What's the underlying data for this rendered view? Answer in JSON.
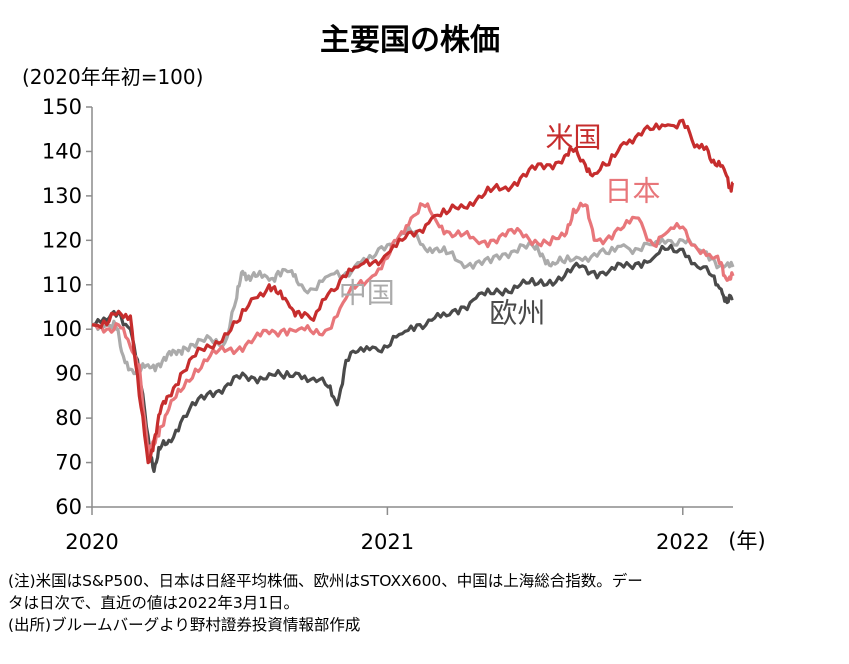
{
  "chart_data": {
    "type": "line",
    "title": "主要国の株価",
    "ylabel": "(2020年年初=100)",
    "xlabel": "(年)",
    "ylim": [
      60,
      150
    ],
    "yticks": [
      60,
      70,
      80,
      90,
      100,
      110,
      120,
      130,
      140,
      150
    ],
    "xlim": [
      2020.0,
      2022.17
    ],
    "xticks": [
      {
        "value": 2020,
        "label": "2020"
      },
      {
        "value": 2021,
        "label": "2021"
      },
      {
        "value": 2022,
        "label": "2022"
      }
    ],
    "series": [
      {
        "name": "中国",
        "label": "中国",
        "color": "#ababab",
        "x": [
          2020.0,
          2020.05,
          2020.08,
          2020.1,
          2020.13,
          2020.16,
          2020.19,
          2020.22,
          2020.25,
          2020.28,
          2020.31,
          2020.35,
          2020.4,
          2020.45,
          2020.49,
          2020.51,
          2020.53,
          2020.56,
          2020.6,
          2020.63,
          2020.67,
          2020.7,
          2020.75,
          2020.8,
          2020.85,
          2020.9,
          2020.95,
          2021.0,
          2021.04,
          2021.08,
          2021.12,
          2021.16,
          2021.2,
          2021.25,
          2021.3,
          2021.35,
          2021.4,
          2021.45,
          2021.5,
          2021.53,
          2021.56,
          2021.6,
          2021.65,
          2021.7,
          2021.75,
          2021.8,
          2021.85,
          2021.9,
          2021.95,
          2022.0,
          2022.05,
          2022.1,
          2022.14,
          2022.17
        ],
        "values": [
          101,
          101,
          101,
          95,
          91,
          90,
          92,
          92,
          93,
          95,
          96,
          96,
          98,
          97,
          107,
          113,
          112,
          112,
          111,
          113,
          113,
          110,
          109,
          112,
          112,
          115,
          116,
          119,
          121,
          122,
          119,
          118,
          117,
          115,
          115,
          115,
          117,
          119,
          118,
          116,
          115,
          115,
          116,
          117,
          117,
          119,
          118,
          119,
          120,
          120,
          118,
          116,
          114,
          114
        ]
      },
      {
        "name": "欧州",
        "label": "欧州",
        "color": "#4a4a4a",
        "x": [
          2020.0,
          2020.05,
          2020.09,
          2020.13,
          2020.16,
          2020.19,
          2020.21,
          2020.23,
          2020.26,
          2020.3,
          2020.35,
          2020.4,
          2020.45,
          2020.5,
          2020.55,
          2020.6,
          2020.65,
          2020.7,
          2020.75,
          2020.8,
          2020.83,
          2020.86,
          2020.9,
          2020.95,
          2021.0,
          2021.05,
          2021.1,
          2021.15,
          2021.2,
          2021.25,
          2021.3,
          2021.35,
          2021.4,
          2021.45,
          2021.5,
          2021.55,
          2021.6,
          2021.65,
          2021.7,
          2021.75,
          2021.8,
          2021.85,
          2021.9,
          2021.95,
          2022.0,
          2022.05,
          2022.1,
          2022.13,
          2022.15,
          2022.17
        ],
        "values": [
          101,
          102,
          104,
          100,
          90,
          76,
          68,
          73,
          75,
          79,
          83,
          86,
          87,
          89,
          89,
          90,
          89,
          90,
          89,
          87,
          83,
          93,
          95,
          96,
          96,
          99,
          101,
          102,
          103,
          105,
          107,
          108,
          109,
          110,
          110,
          111,
          112,
          114,
          113,
          113,
          114,
          115,
          116,
          118,
          118,
          114,
          112,
          109,
          106,
          107
        ]
      },
      {
        "name": "日本",
        "label": "日本",
        "color": "#e8767a",
        "x": [
          2020.0,
          2020.05,
          2020.09,
          2020.13,
          2020.16,
          2020.19,
          2020.21,
          2020.23,
          2020.26,
          2020.3,
          2020.35,
          2020.4,
          2020.45,
          2020.5,
          2020.55,
          2020.6,
          2020.65,
          2020.7,
          2020.75,
          2020.8,
          2020.85,
          2020.9,
          2020.95,
          2021.0,
          2021.04,
          2021.08,
          2021.12,
          2021.16,
          2021.2,
          2021.25,
          2021.3,
          2021.35,
          2021.4,
          2021.45,
          2021.5,
          2021.55,
          2021.6,
          2021.63,
          2021.67,
          2021.7,
          2021.75,
          2021.8,
          2021.85,
          2021.9,
          2021.95,
          2022.0,
          2022.05,
          2022.1,
          2022.13,
          2022.15,
          2022.17
        ],
        "values": [
          101,
          100,
          101,
          96,
          92,
          72,
          74,
          78,
          82,
          86,
          91,
          94,
          95,
          96,
          98,
          99,
          100,
          100,
          99,
          100,
          106,
          110,
          112,
          116,
          121,
          125,
          128,
          125,
          122,
          121,
          120,
          120,
          121,
          122,
          120,
          119,
          121,
          127,
          128,
          120,
          121,
          123,
          125,
          119,
          122,
          123,
          118,
          116,
          115,
          111,
          112
        ]
      },
      {
        "name": "米国",
        "label": "米国",
        "color": "#c62d2d",
        "x": [
          2020.0,
          2020.05,
          2020.09,
          2020.13,
          2020.16,
          2020.19,
          2020.21,
          2020.23,
          2020.26,
          2020.3,
          2020.35,
          2020.4,
          2020.45,
          2020.5,
          2020.55,
          2020.6,
          2020.63,
          2020.67,
          2020.7,
          2020.75,
          2020.8,
          2020.85,
          2020.9,
          2020.95,
          2021.0,
          2021.05,
          2021.1,
          2021.15,
          2021.2,
          2021.25,
          2021.3,
          2021.35,
          2021.4,
          2021.45,
          2021.5,
          2021.55,
          2021.6,
          2021.63,
          2021.67,
          2021.7,
          2021.75,
          2021.8,
          2021.85,
          2021.9,
          2021.95,
          2022.0,
          2022.04,
          2022.08,
          2022.11,
          2022.14,
          2022.16,
          2022.17
        ],
        "values": [
          101,
          101,
          104,
          103,
          85,
          70,
          75,
          81,
          85,
          90,
          94,
          96,
          99,
          102,
          107,
          110,
          108,
          105,
          104,
          102,
          108,
          112,
          114,
          115,
          117,
          120,
          122,
          125,
          126,
          128,
          129,
          131,
          132,
          134,
          136,
          137,
          139,
          140,
          137,
          135,
          137,
          142,
          144,
          145,
          146,
          147,
          141,
          141,
          137,
          136,
          132,
          133
        ]
      }
    ],
    "series_label_pos": {
      "米国": [
        2021.63,
        141
      ],
      "日本": [
        2021.83,
        129
      ],
      "中国": [
        2020.93,
        106
      ],
      "欧州": [
        2021.44,
        101.5
      ]
    }
  },
  "notes": [
    "(注)米国はS&P500、日本は日経平均株価、欧州はSTOXX600、中国は上海総合指数。デー",
    "タは日次で、直近の値は2022年3月1日。",
    "(出所)ブルームバーグより野村證券投資情報部作成"
  ]
}
